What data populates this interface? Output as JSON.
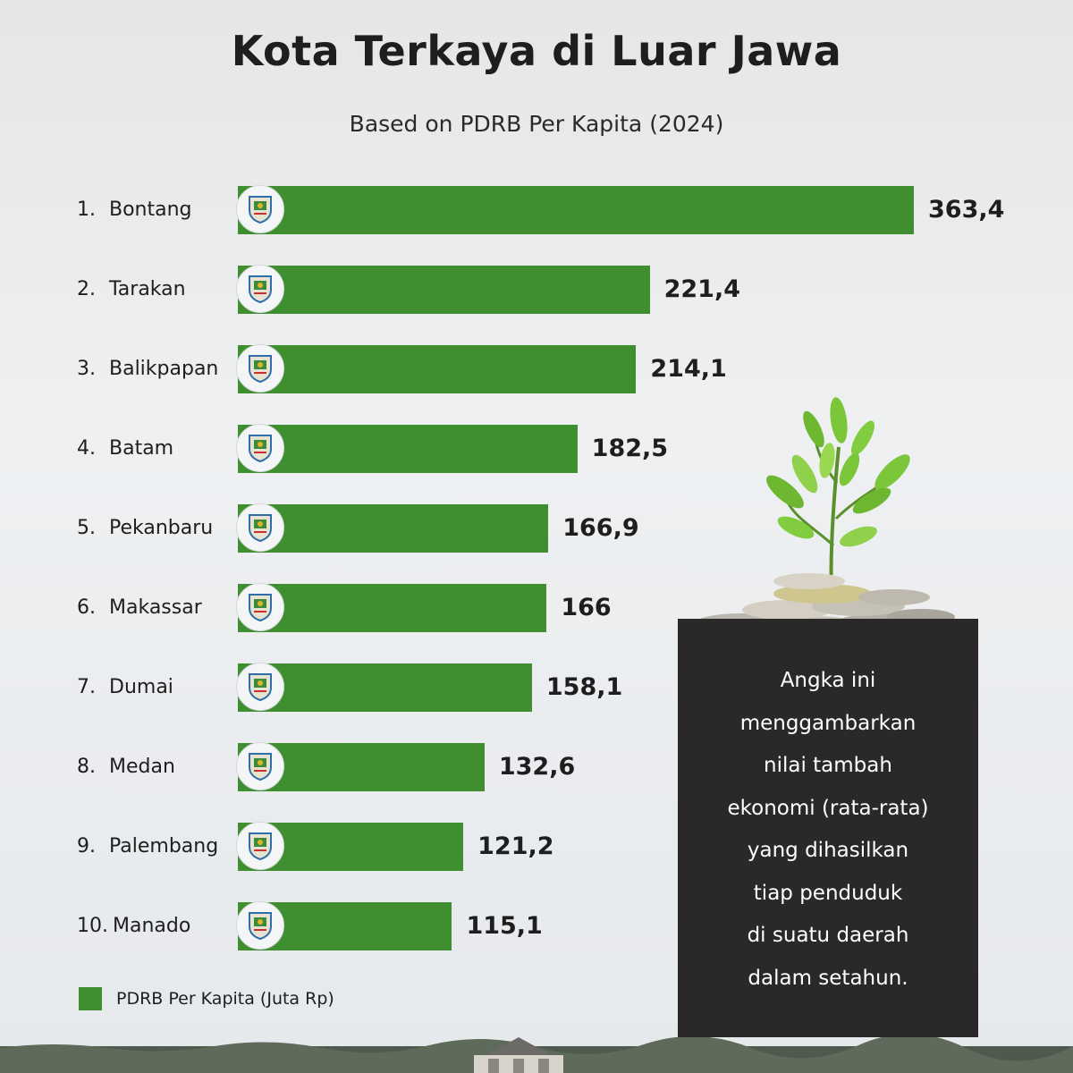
{
  "header": {
    "title": "Kota Terkaya di Luar Jawa",
    "subtitle": "Based on PDRB Per Kapita (2024)"
  },
  "chart_data": {
    "type": "bar",
    "orientation": "horizontal",
    "categories": [
      "Bontang",
      "Tarakan",
      "Balikpapan",
      "Batam",
      "Pekanbaru",
      "Makassar",
      "Dumai",
      "Medan",
      "Palembang",
      "Manado"
    ],
    "ranks": [
      "1.",
      "2.",
      "3.",
      "4.",
      "5.",
      "6.",
      "7.",
      "8.",
      "9.",
      "10."
    ],
    "values": [
      363.4,
      221.4,
      214.1,
      182.5,
      166.9,
      166,
      158.1,
      132.6,
      121.2,
      115.1
    ],
    "value_labels": [
      "363,4",
      "221,4",
      "214,1",
      "182,5",
      "166,9",
      "166",
      "158,1",
      "132,6",
      "121,2",
      "115,1"
    ],
    "series": [
      {
        "name": "PDRB Per Kapita (Juta Rp)",
        "color": "#3f8f30"
      }
    ],
    "legend_position": "bottom-left",
    "grid": false
  },
  "info_box": {
    "lines": [
      "Angka ini",
      "menggambarkan",
      "nilai tambah",
      "ekonomi (rata-rata)",
      "yang dihasilkan",
      "tiap penduduk",
      "di suatu daerah",
      "dalam setahun."
    ]
  },
  "icons": {
    "city_emblem": "city-emblem-icon",
    "plant": "plant-on-coins-illustration"
  },
  "colors": {
    "bar": "#3f8f30",
    "info_box_bg": "#2a2828",
    "text": "#1e1e1e"
  }
}
